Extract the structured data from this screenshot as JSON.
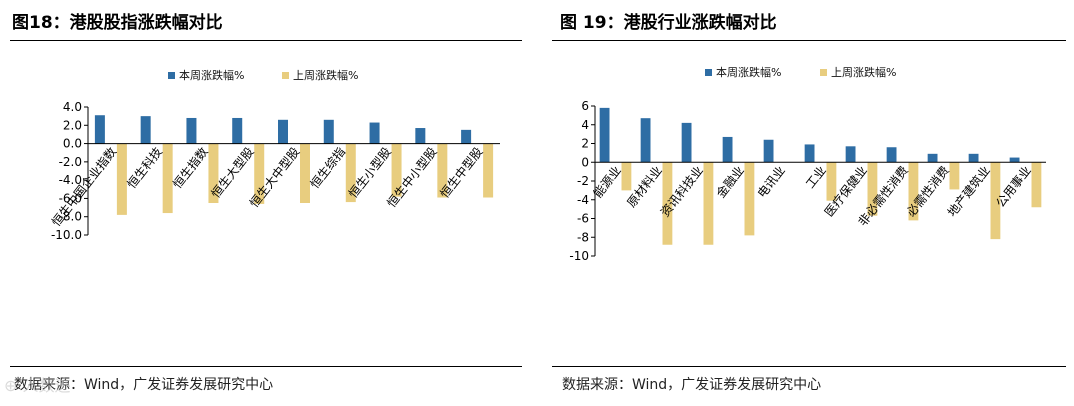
{
  "chart_data": [
    {
      "type": "bar",
      "title": "图18：港股股指涨跌幅对比",
      "source": "数据来源：Wind，广发证券发展研究中心",
      "categories": [
        "恒生中国企业指数",
        "恒生科技",
        "恒生指数",
        "恒生大型股",
        "恒生大中型股",
        "恒生综指",
        "恒生小型股",
        "恒生中小型股",
        "恒生中型股"
      ],
      "series": [
        {
          "name": "本周涨跌幅%",
          "color": "#2E6DA4",
          "values": [
            3.1,
            3.0,
            2.8,
            2.8,
            2.6,
            2.6,
            2.3,
            1.7,
            1.5
          ]
        },
        {
          "name": "上周涨跌幅%",
          "color": "#E8CD7F",
          "values": [
            -7.8,
            -7.6,
            -6.5,
            -6.6,
            -6.5,
            -6.4,
            -5.8,
            -5.9,
            -5.9
          ]
        }
      ],
      "ylim": [
        -10,
        4
      ],
      "yticks": [
        "4.0",
        "2.0",
        "0.0",
        "-2.0",
        "-4.0",
        "-6.0",
        "-8.0",
        "-10.0"
      ],
      "legend": "top",
      "xlabel": "",
      "ylabel": ""
    },
    {
      "type": "bar",
      "title": "图 19：港股行业涨跌幅对比",
      "source": "数据来源：Wind，广发证券发展研究中心",
      "categories": [
        "能源业",
        "原材料业",
        "资讯科技业",
        "金融业",
        "电讯业",
        "工业",
        "医疗保健业",
        "非必需性消费",
        "必需性消费",
        "地产建筑业",
        "公用事业"
      ],
      "series": [
        {
          "name": "本周涨跌幅%",
          "color": "#2E6DA4",
          "values": [
            5.8,
            4.7,
            4.2,
            2.7,
            2.4,
            1.9,
            1.7,
            1.6,
            0.9,
            0.9,
            0.5
          ]
        },
        {
          "name": "上周涨跌幅%",
          "color": "#E8CD7F",
          "values": [
            -3.0,
            -8.8,
            -8.8,
            -7.8,
            0.0,
            -4.1,
            -5.7,
            -6.2,
            -2.9,
            -8.2,
            -4.8
          ]
        }
      ],
      "ylim": [
        -10,
        6
      ],
      "yticks": [
        "6",
        "4",
        "2",
        "0",
        "-2",
        "-4",
        "-6",
        "-8",
        "-10"
      ],
      "legend": "top",
      "xlabel": "",
      "ylabel": ""
    }
  ],
  "watermark": "⊕ 人数迹"
}
